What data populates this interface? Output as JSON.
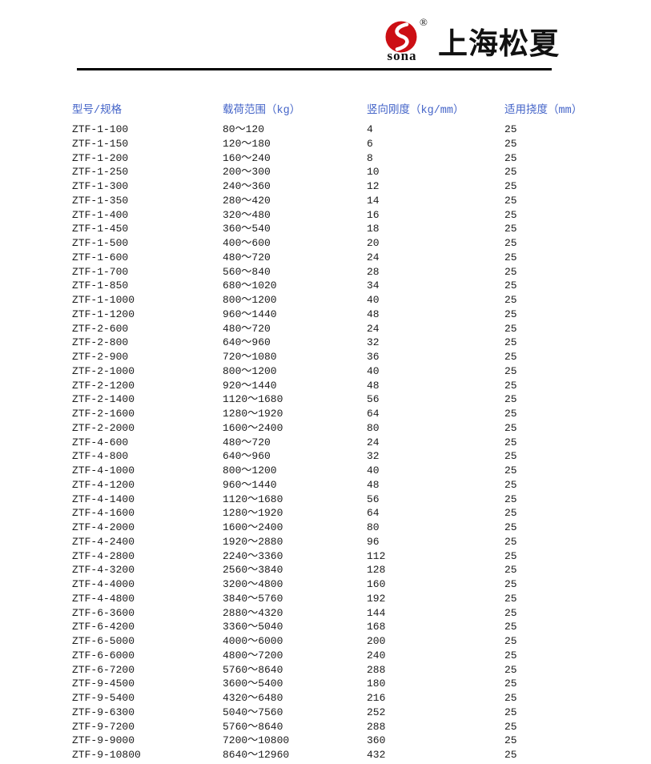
{
  "logo": {
    "brand": "sona",
    "registered": "®",
    "company": "上海松夏",
    "brand_color": "#cc0f14",
    "text_color": "#111111"
  },
  "divider_color": "#000000",
  "table": {
    "header_color": "#4464c8",
    "body_color": "#1b1b1b",
    "columns": [
      "型号/规格",
      "载荷范围（kg）",
      "竖向刚度（kg/mm）",
      "适用挠度（mm）"
    ],
    "rows": [
      [
        "ZTF-1-100",
        "80～120",
        "4",
        "25"
      ],
      [
        "ZTF-1-150",
        "120～180",
        "6",
        "25"
      ],
      [
        "ZTF-1-200",
        "160～240",
        "8",
        "25"
      ],
      [
        "ZTF-1-250",
        "200～300",
        "10",
        "25"
      ],
      [
        "ZTF-1-300",
        "240～360",
        "12",
        "25"
      ],
      [
        "ZTF-1-350",
        "280～420",
        "14",
        "25"
      ],
      [
        "ZTF-1-400",
        "320～480",
        "16",
        "25"
      ],
      [
        "ZTF-1-450",
        "360～540",
        "18",
        "25"
      ],
      [
        "ZTF-1-500",
        "400～600",
        "20",
        "25"
      ],
      [
        "ZTF-1-600",
        "480～720",
        "24",
        "25"
      ],
      [
        "ZTF-1-700",
        "560～840",
        "28",
        "25"
      ],
      [
        "ZTF-1-850",
        "680～1020",
        "34",
        "25"
      ],
      [
        "ZTF-1-1000",
        "800～1200",
        "40",
        "25"
      ],
      [
        "ZTF-1-1200",
        "960～1440",
        "48",
        "25"
      ],
      [
        "ZTF-2-600",
        "480～720",
        "24",
        "25"
      ],
      [
        "ZTF-2-800",
        "640～960",
        "32",
        "25"
      ],
      [
        "ZTF-2-900",
        "720～1080",
        "36",
        "25"
      ],
      [
        "ZTF-2-1000",
        "800～1200",
        "40",
        "25"
      ],
      [
        "ZTF-2-1200",
        "920～1440",
        "48",
        "25"
      ],
      [
        "ZTF-2-1400",
        "1120～1680",
        "56",
        "25"
      ],
      [
        "ZTF-2-1600",
        "1280～1920",
        "64",
        "25"
      ],
      [
        "ZTF-2-2000",
        "1600～2400",
        "80",
        "25"
      ],
      [
        "ZTF-4-600",
        "480～720",
        "24",
        "25"
      ],
      [
        "ZTF-4-800",
        "640～960",
        "32",
        "25"
      ],
      [
        "ZTF-4-1000",
        "800～1200",
        "40",
        "25"
      ],
      [
        "ZTF-4-1200",
        "960～1440",
        "48",
        "25"
      ],
      [
        "ZTF-4-1400",
        "1120～1680",
        "56",
        "25"
      ],
      [
        "ZTF-4-1600",
        "1280～1920",
        "64",
        "25"
      ],
      [
        "ZTF-4-2000",
        "1600～2400",
        "80",
        "25"
      ],
      [
        "ZTF-4-2400",
        "1920～2880",
        "96",
        "25"
      ],
      [
        "ZTF-4-2800",
        "2240～3360",
        "112",
        "25"
      ],
      [
        "ZTF-4-3200",
        "2560～3840",
        "128",
        "25"
      ],
      [
        "ZTF-4-4000",
        "3200～4800",
        "160",
        "25"
      ],
      [
        "ZTF-4-4800",
        "3840～5760",
        "192",
        "25"
      ],
      [
        "ZTF-6-3600",
        "2880～4320",
        "144",
        "25"
      ],
      [
        "ZTF-6-4200",
        "3360～5040",
        "168",
        "25"
      ],
      [
        "ZTF-6-5000",
        "4000～6000",
        "200",
        "25"
      ],
      [
        "ZTF-6-6000",
        "4800～7200",
        "240",
        "25"
      ],
      [
        "ZTF-6-7200",
        "5760～8640",
        "288",
        "25"
      ],
      [
        "ZTF-9-4500",
        "3600～5400",
        "180",
        "25"
      ],
      [
        "ZTF-9-5400",
        "4320～6480",
        "216",
        "25"
      ],
      [
        "ZTF-9-6300",
        "5040～7560",
        "252",
        "25"
      ],
      [
        "ZTF-9-7200",
        "5760～8640",
        "288",
        "25"
      ],
      [
        "ZTF-9-9000",
        "7200～10800",
        "360",
        "25"
      ],
      [
        "ZTF-9-10800",
        "8640～12960",
        "432",
        "25"
      ]
    ]
  }
}
